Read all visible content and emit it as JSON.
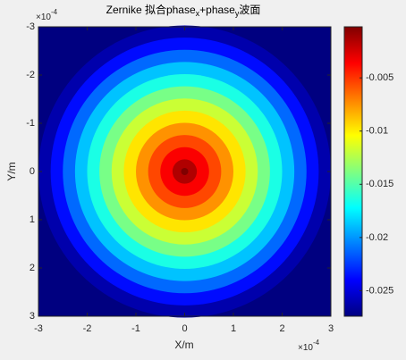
{
  "chart_data": {
    "type": "radial-heatmap",
    "title": [
      "Zernike 拟合phase",
      "x",
      "+phase",
      "y",
      "波面"
    ],
    "x_label": "X/m",
    "y_label": "Y/m",
    "x_exponent": [
      "×10",
      "-4"
    ],
    "y_exponent": [
      "×10",
      "-4"
    ],
    "xlim": [
      -3,
      3
    ],
    "xticks": [
      -3,
      -2,
      -1,
      0,
      1,
      2,
      3
    ],
    "ylim": [
      -3,
      3
    ],
    "yticks": [
      -3,
      -2,
      -1,
      0,
      1,
      2,
      3
    ],
    "y_reversed": true,
    "r": [
      0,
      0.25,
      0.5,
      0.75,
      1,
      1.25,
      1.5,
      1.75,
      2,
      2.25,
      2.5,
      2.75,
      3
    ],
    "values": [
      -0.0002,
      -0.0015,
      -0.0035,
      -0.0055,
      -0.0075,
      -0.0097,
      -0.0118,
      -0.014,
      -0.0165,
      -0.0188,
      -0.0212,
      -0.0237,
      -0.0262
    ],
    "colormap": "jet",
    "clim": [
      -0.0274,
      -0.0002
    ],
    "colorbar_ticks": [
      -0.025,
      -0.02,
      -0.015,
      -0.01,
      -0.005
    ]
  }
}
